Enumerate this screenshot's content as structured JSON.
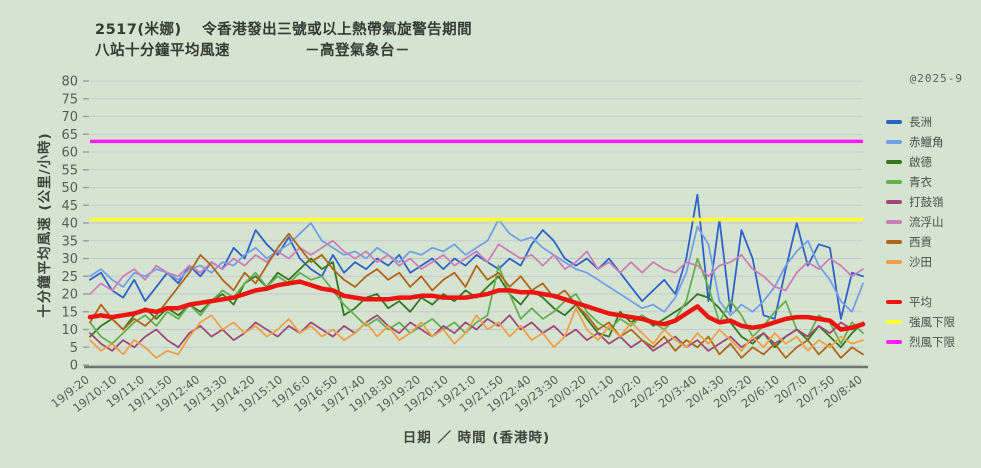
{
  "title": {
    "line1": "2517(米娜)　 令香港發出三號或以上熱帶氣旋警告期間",
    "line2": "八站十分鐘平均風速　　　　　－高登氣象台－"
  },
  "watermark": "@2025-9",
  "colors": {
    "background": "#d5e4d0",
    "grid": "#c5cad2",
    "axis": "#6f766f",
    "tick_text": "#565d56"
  },
  "chart_data": {
    "type": "line",
    "title": "2517(米娜) 令香港發出三號或以上熱帶氣旋警告期間 八站十分鐘平均風速 －高登氣象台－",
    "xlabel": "日期 ／ 時間 (香港時)",
    "ylabel": "十分鐘平均風速 (公里/小時)",
    "ylim": [
      0,
      80
    ],
    "y_tick_step": 5,
    "grid": true,
    "legend_position": "right",
    "points_interval_minutes": 20,
    "x_tick_labels": [
      "19/9:20",
      "19/10:10",
      "19/11:0",
      "19/11:50",
      "19/12:40",
      "19/13:30",
      "19/14:20",
      "19/15:10",
      "19/16:0",
      "19/16:50",
      "19/17:40",
      "19/18:30",
      "19/19:20",
      "19/20:10",
      "19/21:0",
      "19/21:50",
      "19/22:40",
      "19/23:30",
      "20/0:20",
      "20/1:10",
      "20/2:0",
      "20/2:50",
      "20/3:40",
      "20/4:30",
      "20/5:20",
      "20/6:10",
      "20/7:0",
      "20/7:50",
      "20/8:40"
    ],
    "series": [
      {
        "key": "cheung-chau",
        "name": "長洲",
        "color": "#2e62c8",
        "role": "station",
        "values": [
          24,
          26,
          21,
          19,
          24,
          18,
          22,
          26,
          23,
          28,
          25,
          29,
          27,
          33,
          30,
          38,
          34,
          31,
          36,
          30,
          27,
          25,
          31,
          26,
          29,
          27,
          30,
          28,
          31,
          26,
          28,
          30,
          27,
          30,
          28,
          31,
          29,
          27,
          30,
          28,
          34,
          38,
          35,
          30,
          28,
          30,
          27,
          30,
          26,
          22,
          18,
          21,
          24,
          20,
          30,
          48,
          18,
          41,
          15,
          38,
          30,
          14,
          13,
          27,
          40,
          28,
          34,
          33,
          13,
          26,
          25
        ]
      },
      {
        "key": "chek-lap-kok",
        "name": "赤鱲角",
        "color": "#74a0e8",
        "role": "station",
        "values": [
          25,
          27,
          24,
          22,
          26,
          25,
          27,
          26,
          24,
          27,
          28,
          26,
          29,
          28,
          31,
          33,
          30,
          32,
          34,
          37,
          40,
          35,
          33,
          31,
          32,
          30,
          33,
          31,
          29,
          32,
          31,
          33,
          32,
          34,
          31,
          33,
          35,
          41,
          37,
          35,
          36,
          33,
          31,
          29,
          27,
          26,
          24,
          22,
          20,
          18,
          16,
          17,
          15,
          19,
          26,
          39,
          34,
          18,
          14,
          17,
          15,
          18,
          22,
          28,
          32,
          35,
          28,
          24,
          18,
          15,
          23
        ]
      },
      {
        "key": "kai-tak",
        "name": "啟德",
        "color": "#35781f",
        "role": "station",
        "values": [
          8,
          11,
          13,
          10,
          14,
          16,
          13,
          16,
          14,
          17,
          15,
          18,
          20,
          17,
          23,
          25,
          22,
          26,
          24,
          27,
          30,
          27,
          29,
          14,
          16,
          19,
          20,
          16,
          18,
          15,
          19,
          17,
          20,
          18,
          21,
          19,
          22,
          25,
          20,
          17,
          21,
          19,
          16,
          14,
          17,
          13,
          9,
          8,
          15,
          12,
          14,
          11,
          13,
          15,
          17,
          20,
          19,
          16,
          12,
          8,
          6,
          9,
          5,
          8,
          10,
          7,
          11,
          8,
          5,
          9,
          12
        ]
      },
      {
        "key": "tsing-yi",
        "name": "青衣",
        "color": "#62b050",
        "role": "station",
        "values": [
          12,
          8,
          6,
          9,
          12,
          14,
          11,
          15,
          13,
          17,
          14,
          18,
          21,
          19,
          23,
          26,
          22,
          25,
          23,
          26,
          24,
          25,
          21,
          17,
          14,
          11,
          13,
          10,
          12,
          9,
          11,
          13,
          10,
          12,
          9,
          12,
          14,
          28,
          20,
          13,
          16,
          13,
          15,
          18,
          20,
          15,
          12,
          10,
          13,
          11,
          14,
          12,
          10,
          13,
          18,
          30,
          22,
          12,
          18,
          14,
          8,
          11,
          15,
          18,
          10,
          8,
          14,
          12,
          6,
          12,
          9
        ]
      },
      {
        "key": "ta-kwu-ling",
        "name": "打鼓嶺",
        "color": "#a04878",
        "role": "station",
        "values": [
          9,
          6,
          4,
          7,
          5,
          8,
          10,
          7,
          5,
          9,
          11,
          8,
          10,
          7,
          9,
          12,
          10,
          8,
          11,
          9,
          12,
          10,
          8,
          11,
          9,
          12,
          14,
          11,
          9,
          12,
          10,
          8,
          11,
          9,
          12,
          10,
          13,
          11,
          14,
          10,
          12,
          9,
          11,
          8,
          10,
          7,
          9,
          6,
          8,
          5,
          7,
          4,
          6,
          8,
          5,
          7,
          4,
          6,
          8,
          5,
          7,
          9,
          6,
          8,
          10,
          8,
          11,
          9,
          12,
          10,
          12
        ]
      },
      {
        "key": "lau-fau-shan",
        "name": "流浮山",
        "color": "#cc7fb7",
        "role": "station",
        "values": [
          20,
          23,
          21,
          25,
          27,
          24,
          28,
          26,
          25,
          28,
          26,
          29,
          27,
          30,
          28,
          31,
          29,
          32,
          30,
          33,
          31,
          33,
          35,
          32,
          30,
          32,
          29,
          31,
          28,
          30,
          27,
          29,
          31,
          28,
          30,
          32,
          29,
          34,
          32,
          30,
          31,
          28,
          31,
          27,
          29,
          32,
          27,
          29,
          26,
          29,
          26,
          29,
          27,
          26,
          29,
          28,
          25,
          28,
          29,
          31,
          27,
          25,
          22,
          21,
          26,
          29,
          27,
          30,
          28,
          25,
          27
        ]
      },
      {
        "key": "sai-kung",
        "name": "西貢",
        "color": "#b0661a",
        "role": "station",
        "values": [
          12,
          17,
          13,
          10,
          13,
          11,
          14,
          18,
          22,
          26,
          31,
          28,
          24,
          21,
          26,
          23,
          28,
          33,
          37,
          33,
          29,
          31,
          27,
          24,
          22,
          25,
          27,
          24,
          26,
          22,
          25,
          21,
          24,
          26,
          22,
          28,
          24,
          26,
          22,
          25,
          21,
          23,
          19,
          21,
          17,
          14,
          10,
          12,
          8,
          10,
          7,
          5,
          8,
          4,
          7,
          5,
          8,
          3,
          6,
          2,
          5,
          3,
          6,
          2,
          5,
          7,
          3,
          6,
          2,
          5,
          3
        ]
      },
      {
        "key": "sha-tin",
        "name": "沙田",
        "color": "#efa04b",
        "role": "station",
        "values": [
          7,
          4,
          6,
          3,
          7,
          5,
          2,
          4,
          3,
          8,
          12,
          14,
          10,
          12,
          9,
          11,
          8,
          10,
          13,
          9,
          11,
          8,
          10,
          7,
          9,
          12,
          8,
          11,
          7,
          9,
          12,
          8,
          10,
          6,
          9,
          14,
          10,
          12,
          8,
          11,
          7,
          9,
          5,
          8,
          16,
          10,
          7,
          11,
          8,
          12,
          9,
          6,
          10,
          7,
          5,
          9,
          6,
          10,
          7,
          4,
          8,
          5,
          9,
          6,
          8,
          4,
          7,
          5,
          8,
          6,
          7
        ]
      },
      {
        "key": "average",
        "name": "平均",
        "color": "#ee1510",
        "role": "average",
        "values": [
          13.5,
          14,
          13.5,
          14,
          14.5,
          15.5,
          15,
          16,
          16,
          17,
          17.5,
          18,
          18.5,
          19,
          20,
          21,
          21.5,
          22.5,
          23,
          23.5,
          22.5,
          21.5,
          21,
          19.5,
          19,
          18.5,
          18.5,
          18.5,
          19,
          19,
          19.5,
          19.5,
          19,
          19,
          19,
          19.5,
          20,
          21,
          21,
          20.5,
          20.5,
          20,
          19.5,
          18.5,
          17.5,
          16.5,
          15.5,
          14.5,
          14,
          13.5,
          13,
          12,
          11.5,
          12.5,
          14.5,
          16.5,
          13.5,
          12,
          12.5,
          11,
          10.5,
          11,
          12,
          13,
          13.5,
          13.5,
          13,
          12.5,
          10,
          10.5,
          11.5
        ]
      }
    ],
    "reference_lines": [
      {
        "key": "strong-wind-threshold",
        "name": "強風下限",
        "value": 41,
        "color": "#ffff30"
      },
      {
        "key": "gale-threshold",
        "name": "烈風下限",
        "value": 63,
        "color": "#ff1cff"
      }
    ]
  }
}
